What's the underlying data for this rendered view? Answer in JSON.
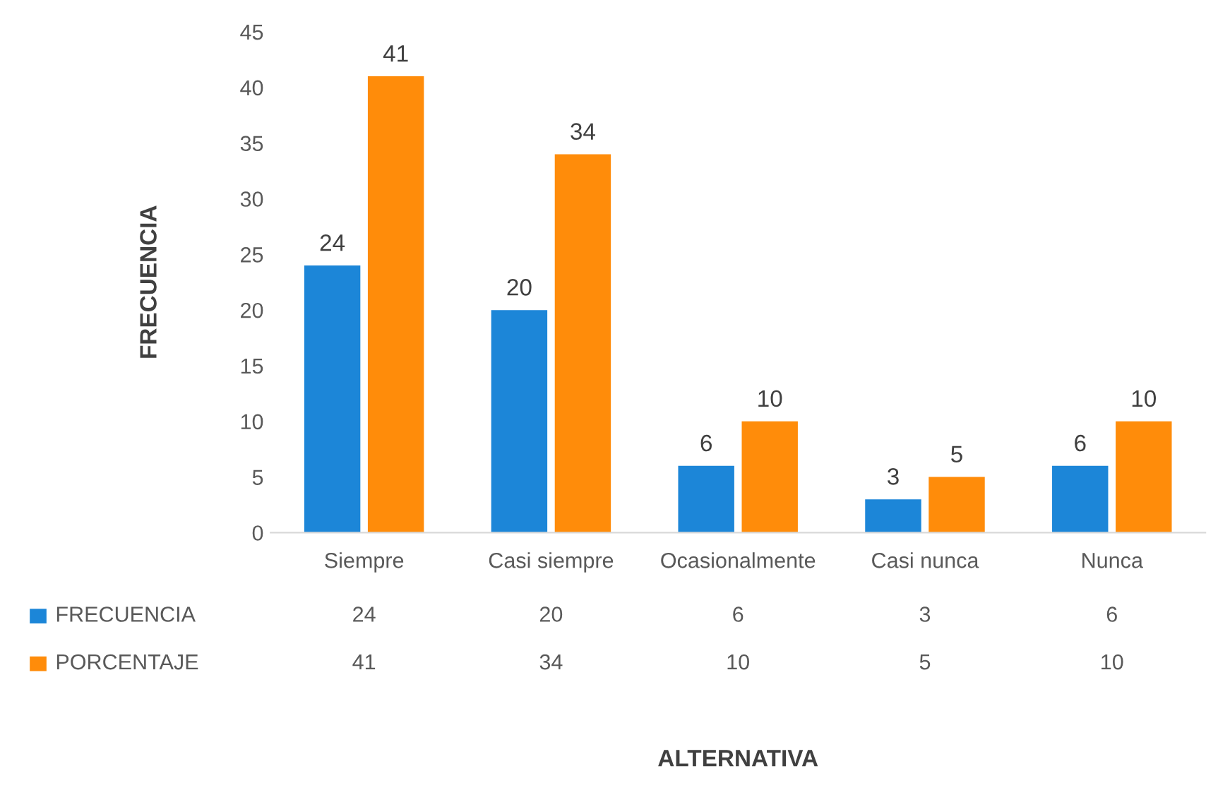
{
  "chart_data": {
    "type": "bar",
    "ylabel": "FRECUENCIA",
    "categories": [
      "Siempre",
      "Casi siempre",
      "Ocasionalmente",
      "Casi nunca",
      "Nunca"
    ],
    "series": [
      {
        "name": "FRECUENCIA",
        "color": "#1c86d8",
        "values": [
          24,
          20,
          6,
          3,
          6
        ],
        "value_labels": [
          "24",
          "20",
          "6",
          "3",
          "6"
        ]
      },
      {
        "name": "PORCENTAJE",
        "color": "#ff8c0a",
        "values": [
          41,
          34,
          10,
          5,
          10
        ],
        "value_labels": [
          "41",
          "34",
          "10",
          "5",
          "10"
        ]
      }
    ],
    "ylim": [
      0,
      45
    ],
    "yticks": [
      0,
      5,
      10,
      15,
      20,
      25,
      30,
      35,
      40,
      45
    ],
    "annotations": [
      "24",
      "20",
      "6",
      "3",
      "6",
      "41",
      "34",
      "10",
      "5",
      "10",
      "ALTERNATIVA"
    ],
    "grid": false,
    "legend": "bottom"
  }
}
